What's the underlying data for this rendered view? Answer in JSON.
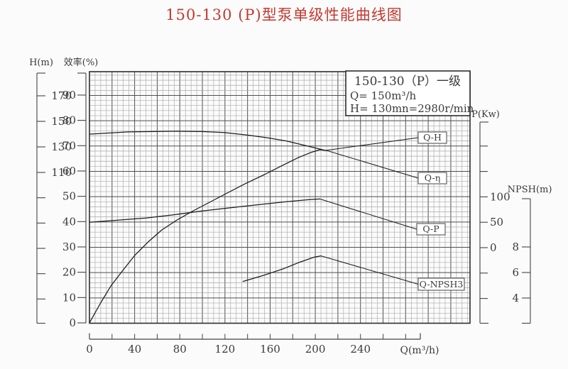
{
  "title": {
    "text": "150-130 (P)型泵单级性能曲线图"
  },
  "legend": {
    "model": "150-130（P）一级",
    "q_line": "Q= 150m³/h",
    "h_line": "H= 130m",
    "n_line": "n=2980r/min"
  },
  "curve_labels": [
    "Q-H",
    "Q-η",
    "Q-P",
    "Q-NPSH3"
  ],
  "colors": {
    "title_red": "#c23a30",
    "curve_line": "#1c1c1c",
    "grid_minor": "#9b9b9b",
    "grid_major": "#505050",
    "frame": "#2e2e2e"
  },
  "chart_data": {
    "type": "line",
    "title": "150-130 (P)型泵单级性能曲线图",
    "grid": "on",
    "x_axis": {
      "label": "Q(m³/h)",
      "ticks": [
        0,
        40,
        80,
        120,
        160,
        200,
        240
      ],
      "range": [
        0,
        293
      ],
      "minor_step": 20
    },
    "axes": {
      "h": {
        "label": "H(m)",
        "labeled_ticks": [
          170,
          150,
          130,
          110
        ],
        "unlabeled_ticks_below": 5,
        "step": 20
      },
      "eff": {
        "label": "效率(%)",
        "ticks": [
          90,
          80,
          70,
          60,
          50,
          40,
          30,
          20,
          10,
          0
        ]
      },
      "p": {
        "label": "P(Kw)",
        "labeled_ticks": [
          100,
          50,
          0
        ],
        "unlabeled_ticks_above": 2,
        "unlabeled_ticks_below": 2
      },
      "npsh": {
        "label": "NPSH(m)",
        "ticks": [
          8,
          6,
          4
        ]
      }
    },
    "series": [
      {
        "name": "Q-H",
        "y_axis": "H(m)",
        "units": "m",
        "points": [
          [
            0,
            140
          ],
          [
            34,
            141.7
          ],
          [
            78,
            142.3
          ],
          [
            100,
            142
          ],
          [
            119,
            141.2
          ],
          [
            140,
            139.2
          ],
          [
            157,
            137.2
          ],
          [
            175,
            134.5
          ],
          [
            191,
            131.1
          ],
          [
            209,
            127.2
          ]
        ]
      },
      {
        "name": "Q-η",
        "y_axis": "效率(%)",
        "units": "%",
        "points": [
          [
            0,
            0
          ],
          [
            10,
            8
          ],
          [
            19,
            14.6
          ],
          [
            30,
            21
          ],
          [
            40,
            26.6
          ],
          [
            52,
            32
          ],
          [
            64,
            36.7
          ],
          [
            78,
            40.8
          ],
          [
            92,
            44.3
          ],
          [
            107,
            47.8
          ],
          [
            122,
            51.3
          ],
          [
            138,
            55
          ],
          [
            155,
            58.6
          ],
          [
            170,
            62
          ],
          [
            185,
            65.3
          ],
          [
            196,
            67.3
          ],
          [
            204,
            68.4
          ],
          [
            210,
            68.1
          ]
        ]
      },
      {
        "name": "Q-P",
        "y_axis": "P(Kw)",
        "units": "Kw",
        "points": [
          [
            0,
            50
          ],
          [
            25,
            54
          ],
          [
            50,
            58.3
          ],
          [
            75,
            64.8
          ],
          [
            100,
            72.2
          ],
          [
            125,
            78.6
          ],
          [
            150,
            84.7
          ],
          [
            172,
            90
          ],
          [
            194,
            94.4
          ],
          [
            204,
            95.8
          ]
        ]
      },
      {
        "name": "Q-NPSH3",
        "y_axis": "NPSH(m)",
        "units": "m",
        "points": [
          [
            136,
            5.3
          ],
          [
            155,
            5.8
          ],
          [
            172,
            6.3
          ],
          [
            186,
            6.8
          ],
          [
            199,
            7.2
          ],
          [
            205,
            7.3
          ]
        ]
      }
    ],
    "rated_point": {
      "Q": "150m³/h",
      "H": "130m",
      "n": "2980r/min"
    }
  }
}
